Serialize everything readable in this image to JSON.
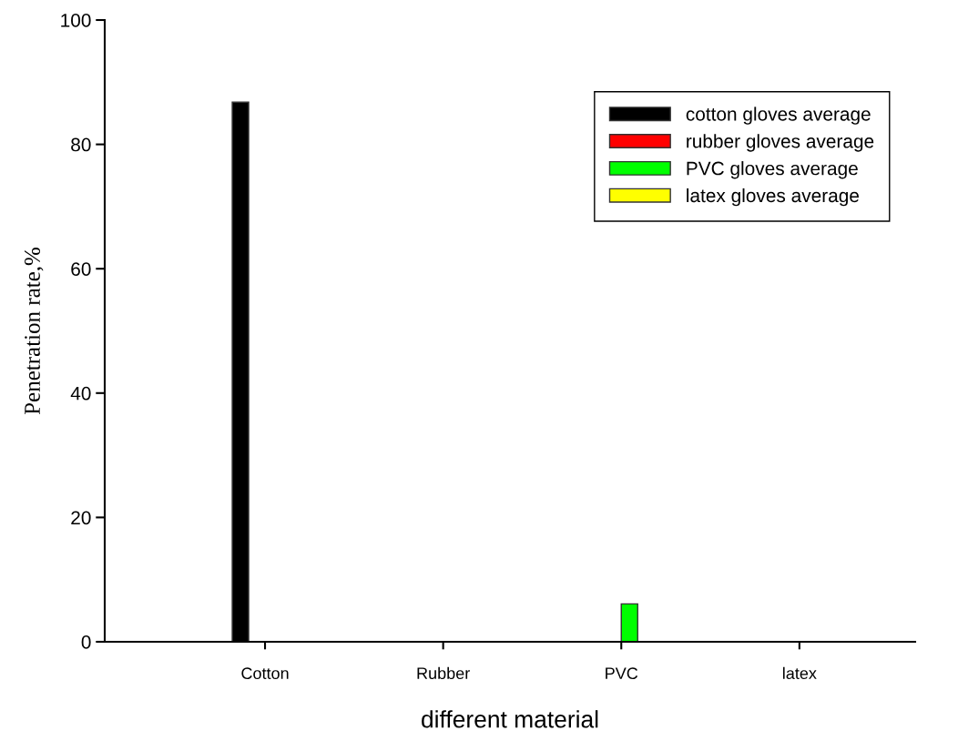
{
  "chart_data": {
    "type": "bar",
    "xlabel": "different material",
    "ylabel": "Penetration rate,%",
    "categories": [
      "Cotton",
      "Rubber",
      "PVC",
      "latex"
    ],
    "series": [
      {
        "name": "cotton gloves average",
        "color": "#000000",
        "values": [
          86.8,
          null,
          null,
          null
        ]
      },
      {
        "name": "rubber gloves average",
        "color": "#ff0000",
        "values": [
          null,
          null,
          null,
          null
        ]
      },
      {
        "name": "PVC gloves average",
        "color": "#00ff00",
        "values": [
          null,
          null,
          6.1,
          null
        ]
      },
      {
        "name": "latex gloves average",
        "color": "#ffff00",
        "values": [
          null,
          null,
          null,
          null
        ]
      }
    ],
    "ylim": [
      0,
      100
    ],
    "yticks": [
      0,
      20,
      40,
      60,
      80,
      100
    ],
    "grid": false,
    "legend": "top right"
  }
}
